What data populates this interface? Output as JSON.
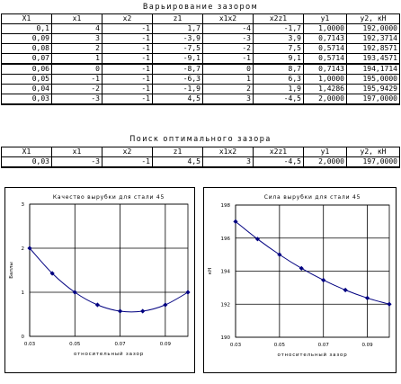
{
  "sheet": {
    "title1": "Варьирование зазором",
    "headers": [
      "X1",
      "x1",
      "x2",
      "z1",
      "x1x2",
      "x2z1",
      "y1",
      "y2, кН"
    ],
    "rows": [
      [
        "0,1",
        "4",
        "-1",
        "1,7",
        "-4",
        "-1,7",
        "1,0000",
        "192,0000"
      ],
      [
        "0,09",
        "3",
        "-1",
        "-3,9",
        "-3",
        "3,9",
        "0,7143",
        "192,3714"
      ],
      [
        "0,08",
        "2",
        "-1",
        "-7,5",
        "-2",
        "7,5",
        "0,5714",
        "192,8571"
      ],
      [
        "0,07",
        "1",
        "-1",
        "-9,1",
        "-1",
        "9,1",
        "0,5714",
        "193,4571"
      ],
      [
        "0,06",
        "0",
        "-1",
        "-8,7",
        "0",
        "8,7",
        "0,7143",
        "194,1714"
      ],
      [
        "0,05",
        "-1",
        "-1",
        "-6,3",
        "1",
        "6,3",
        "1,0000",
        "195,0000"
      ],
      [
        "0,04",
        "-2",
        "-1",
        "-1,9",
        "2",
        "1,9",
        "1,4286",
        "195,9429"
      ],
      [
        "0,03",
        "-3",
        "-1",
        "4,5",
        "3",
        "-4,5",
        "2,0000",
        "197,0000"
      ]
    ],
    "title2": "Поиск оптимального зазора",
    "opt_row": [
      "0,03",
      "-3",
      "-1",
      "4,5",
      "3",
      "-4,5",
      "2,0000",
      "197,0000"
    ]
  },
  "chart_data": [
    {
      "type": "line",
      "title": "Качество вырубки для стали 45",
      "xlabel": "относительный зазор",
      "ylabel": "Баллы",
      "x": [
        0.03,
        0.04,
        0.05,
        0.06,
        0.07,
        0.08,
        0.09,
        0.1
      ],
      "series": [
        {
          "values": [
            2.0,
            1.4286,
            1.0,
            0.7143,
            0.5714,
            0.5714,
            0.7143,
            1.0
          ]
        }
      ],
      "xlim": [
        0.03,
        0.1
      ],
      "ylim": [
        0,
        3
      ],
      "xticks": [
        "0.03",
        "0.05",
        "0.07",
        "0.09"
      ],
      "yticks": [
        "0",
        "1",
        "2",
        "3"
      ],
      "grid": true,
      "color": "#000080"
    },
    {
      "type": "line",
      "title": "Сила вырубки для стали 45",
      "xlabel": "относительный зазор",
      "ylabel": "кН",
      "x": [
        0.03,
        0.04,
        0.05,
        0.06,
        0.07,
        0.08,
        0.09,
        0.1
      ],
      "series": [
        {
          "values": [
            197.0,
            195.9429,
            195.0,
            194.1714,
            193.4571,
            192.8571,
            192.3714,
            192.0
          ]
        }
      ],
      "xlim": [
        0.03,
        0.1
      ],
      "ylim": [
        190,
        198
      ],
      "xticks": [
        "0.03",
        "0.05",
        "0.07",
        "0.09"
      ],
      "yticks": [
        "190",
        "192",
        "194",
        "196",
        "198"
      ],
      "grid": true,
      "color": "#000080"
    }
  ]
}
